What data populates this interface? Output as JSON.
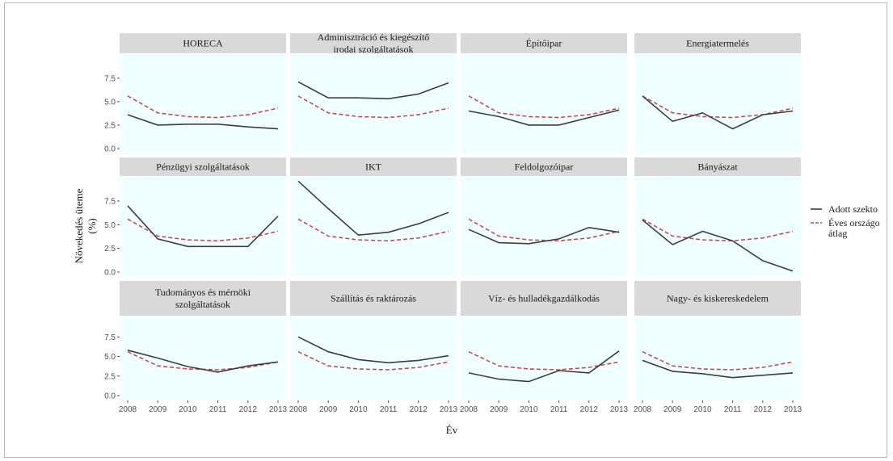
{
  "chart_data": {
    "type": "line",
    "xlabel": "Év",
    "ylabel_lines": [
      "Növekedés üteme",
      "(%)"
    ],
    "x": [
      2008,
      2009,
      2010,
      2011,
      2012,
      2013
    ],
    "x_tick_labels": [
      "2008",
      "2009",
      "2010",
      "2011",
      "2012",
      "2013"
    ],
    "ylim": [
      0,
      9.8
    ],
    "y_ticks": [
      0,
      2.5,
      5,
      7.5
    ],
    "y_tick_labels": [
      "0.0",
      "2.5",
      "5.0",
      "7.5"
    ],
    "grid": false,
    "legend_position": "right",
    "legend": [
      {
        "lines": [
          "Adott szekto"
        ],
        "color": "#3d3d3d",
        "dash": "solid"
      },
      {
        "lines": [
          "Éves országo",
          "átlag"
        ],
        "color": "#c0504d",
        "dash": "dashed"
      }
    ],
    "average_series": {
      "values": [
        5.6,
        3.8,
        3.4,
        3.3,
        3.6,
        4.3
      ]
    },
    "panels": [
      {
        "title_lines": [
          "HORECA"
        ],
        "values": [
          3.6,
          2.5,
          2.6,
          2.6,
          2.3,
          2.1
        ]
      },
      {
        "title_lines": [
          "Adminisztráció és kiegészítő",
          "irodai szolgáltatások"
        ],
        "values": [
          7.1,
          5.4,
          5.4,
          5.3,
          5.8,
          7.0
        ]
      },
      {
        "title_lines": [
          "Építőipar"
        ],
        "values": [
          4.0,
          3.4,
          2.5,
          2.5,
          3.3,
          4.1
        ]
      },
      {
        "title_lines": [
          "Energiatermelés"
        ],
        "values": [
          5.6,
          2.9,
          3.8,
          2.1,
          3.6,
          4.0
        ]
      },
      {
        "title_lines": [
          "Pénzügyi szolgáltatások"
        ],
        "values": [
          7.0,
          3.5,
          2.7,
          2.7,
          2.7,
          5.9
        ]
      },
      {
        "title_lines": [
          "IKT"
        ],
        "values": [
          9.6,
          6.7,
          3.9,
          4.2,
          5.1,
          6.3
        ]
      },
      {
        "title_lines": [
          "Feldolgozóipar"
        ],
        "values": [
          4.5,
          3.1,
          3.0,
          3.5,
          4.7,
          4.2
        ]
      },
      {
        "title_lines": [
          "Bányászat"
        ],
        "values": [
          5.5,
          2.9,
          4.3,
          3.3,
          1.2,
          0.1
        ]
      },
      {
        "title_lines": [
          "Tudományos és mérnöki",
          "szolgáltatások"
        ],
        "values": [
          5.8,
          4.8,
          3.7,
          3.0,
          3.8,
          4.3
        ]
      },
      {
        "title_lines": [
          "Szállítás és raktározás"
        ],
        "values": [
          7.5,
          5.6,
          4.6,
          4.2,
          4.5,
          5.1
        ]
      },
      {
        "title_lines": [
          "Víz- és hulladékgazdálkodás"
        ],
        "values": [
          2.9,
          2.1,
          1.8,
          3.2,
          2.9,
          5.7
        ]
      },
      {
        "title_lines": [
          "Nagy- és kiskereskedelem"
        ],
        "values": [
          4.5,
          3.1,
          2.8,
          2.3,
          2.6,
          2.9
        ]
      }
    ],
    "colors": {
      "panel_background": "#f0ffff",
      "strip_background": "#d9d9d9",
      "sector_line": "#3d3d3d",
      "average_line": "#c0504d"
    }
  }
}
